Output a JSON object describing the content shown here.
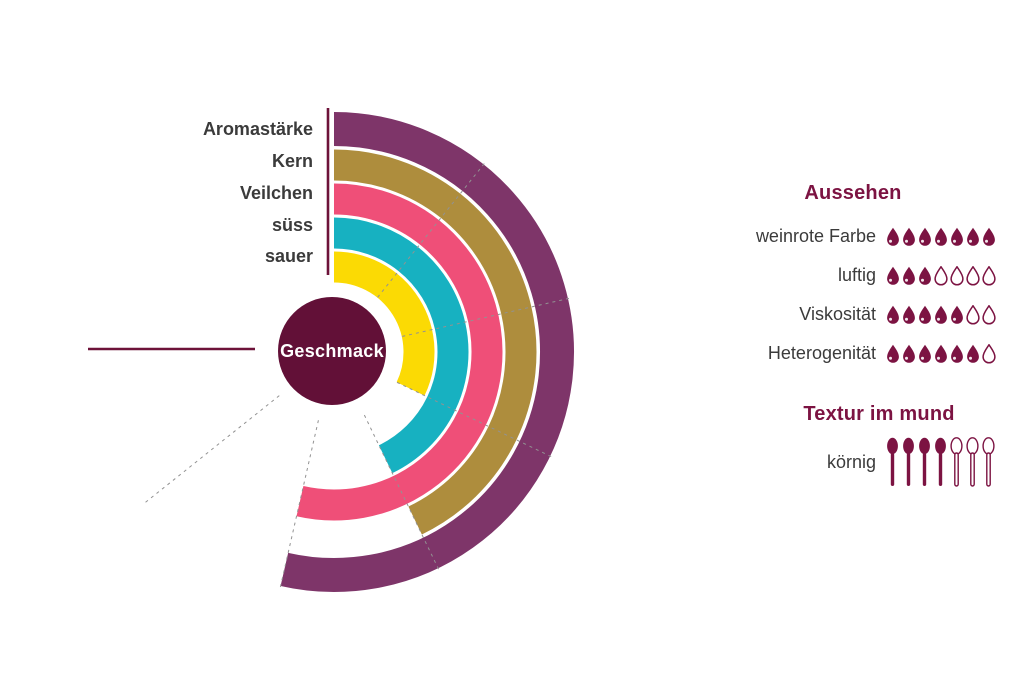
{
  "page": {
    "background": "#ffffff"
  },
  "colors": {
    "wine": "#7c1342",
    "wine_dark": "#621037",
    "label_gray": "#3b3b3b",
    "gridline_gray": "#929292"
  },
  "chart_data": [
    {
      "type": "radial-bar",
      "title": "Geschmack",
      "categories": [
        "Aromastärke",
        "Kern",
        "Veilchen",
        "süss",
        "sauer"
      ],
      "values": [
        5,
        4,
        5,
        4,
        3
      ],
      "scale": [
        0,
        7
      ],
      "sweep_deg": 270,
      "start_deg": 0,
      "direction": "clockwise",
      "colors": [
        "#7e3569",
        "#ae8d3d",
        "#ef4f78",
        "#17b1c1",
        "#fbda04"
      ],
      "gridlines": {
        "every": 1,
        "style": "dashed",
        "color": "#929292"
      },
      "axis_lines": {
        "start_deg": 0,
        "end_deg": 270,
        "color": "#6d1239"
      },
      "center_label": "Geschmack",
      "center_color": "#621037",
      "legend_position": "left-labels"
    },
    {
      "type": "pictogram",
      "title": "Aussehen",
      "icon": "droplet",
      "scale": [
        0,
        7
      ],
      "categories": [
        "weinrote Farbe",
        "luftig",
        "Viskosität",
        "Heterogenität"
      ],
      "values": [
        7,
        3,
        5,
        6
      ],
      "icon_color": "#7c1342"
    },
    {
      "type": "pictogram",
      "title": "Textur im mund",
      "icon": "spoon",
      "scale": [
        0,
        7
      ],
      "categories": [
        "körnig"
      ],
      "values": [
        4
      ],
      "icon_color": "#7c1342"
    }
  ]
}
